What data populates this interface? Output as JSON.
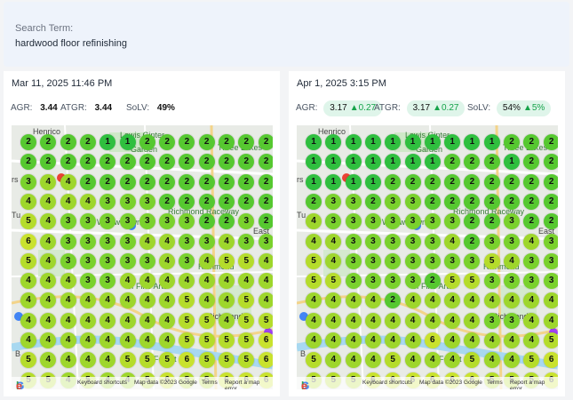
{
  "search": {
    "label": "Search Term:",
    "term": "hardwood floor refinishing"
  },
  "map_labels": {
    "henrico": "Henrico",
    "lewis_ginter": "Lewis Ginter",
    "garden": "Garden",
    "three_lakes": "Three Lakes",
    "willow_lawn": "Willow Lawn",
    "raceway": "Richmond Raceway",
    "east": "East",
    "richmond": "Richmond",
    "of_fine_arts": "of Fine Arts",
    "richmond_big": "Richmond",
    "forest": "Forest",
    "tu": "Tu",
    "rs": "rs",
    "b": "B"
  },
  "attribution": {
    "google": [
      "G",
      "o",
      "o",
      "g",
      "l",
      "e"
    ],
    "shortcuts": "Keyboard shortcuts",
    "map_data": "Map data ©2023 Google",
    "terms": "Terms",
    "report": "Report a map error"
  },
  "colors": {
    "rank_1": "#2fbf3f",
    "rank_2": "#56c830",
    "rank_3": "#7ad12d",
    "rank_4": "#9ed62c",
    "rank_5": "#b5dc2b",
    "rank_6": "#c9e22e"
  },
  "panels": [
    {
      "date": "Mar 11, 2025 11:46 PM",
      "agr_label": "AGR:",
      "agr_value": "3.44",
      "agr_delta": "",
      "atgr_label": "ATGR:",
      "atgr_value": "3.44",
      "atgr_delta": "",
      "solv_label": "SoLV:",
      "solv_value": "49%",
      "solv_delta": "",
      "grid": [
        [
          2,
          2,
          2,
          2,
          1,
          1,
          2,
          2,
          2,
          2,
          2,
          2,
          2
        ],
        [
          2,
          2,
          2,
          2,
          2,
          2,
          2,
          2,
          2,
          2,
          2,
          2,
          2
        ],
        [
          3,
          4,
          4,
          2,
          2,
          2,
          2,
          2,
          2,
          2,
          2,
          2,
          2
        ],
        [
          4,
          4,
          4,
          4,
          3,
          3,
          3,
          2,
          2,
          2,
          2,
          2,
          2
        ],
        [
          5,
          4,
          3,
          3,
          3,
          3,
          3,
          3,
          3,
          2,
          2,
          3,
          2
        ],
        [
          6,
          4,
          3,
          3,
          3,
          3,
          4,
          4,
          3,
          3,
          4,
          3,
          3
        ],
        [
          5,
          4,
          3,
          3,
          3,
          3,
          3,
          4,
          3,
          4,
          5,
          5,
          4
        ],
        [
          4,
          4,
          4,
          3,
          3,
          4,
          4,
          4,
          4,
          4,
          4,
          4,
          4
        ],
        [
          4,
          4,
          4,
          4,
          4,
          4,
          4,
          4,
          5,
          4,
          4,
          5,
          4
        ],
        [
          4,
          4,
          4,
          4,
          4,
          4,
          4,
          4,
          5,
          5,
          4,
          5,
          5
        ],
        [
          4,
          4,
          4,
          4,
          4,
          4,
          4,
          4,
          5,
          5,
          5,
          5,
          6
        ],
        [
          5,
          4,
          4,
          4,
          4,
          5,
          5,
          5,
          6,
          5,
          5,
          5,
          6
        ],
        [
          5,
          5,
          4,
          5,
          4,
          4,
          5,
          6,
          5,
          5,
          6,
          6,
          6
        ]
      ]
    },
    {
      "date": "Apr 1, 2025 3:15 PM",
      "agr_label": "AGR:",
      "agr_value": "3.17",
      "agr_delta": "▲0.27",
      "atgr_label": "ATGR:",
      "atgr_value": "3.17",
      "atgr_delta": "▲0.27",
      "solv_label": "SoLV:",
      "solv_value": "54%",
      "solv_delta": "▲5%",
      "grid": [
        [
          1,
          1,
          1,
          1,
          1,
          1,
          1,
          1,
          1,
          1,
          2,
          2,
          2
        ],
        [
          1,
          1,
          1,
          1,
          1,
          1,
          1,
          2,
          2,
          2,
          1,
          2,
          2
        ],
        [
          1,
          1,
          1,
          1,
          2,
          2,
          2,
          2,
          2,
          2,
          2,
          2,
          2
        ],
        [
          2,
          3,
          3,
          2,
          3,
          3,
          2,
          2,
          2,
          2,
          2,
          2,
          2
        ],
        [
          4,
          3,
          3,
          3,
          3,
          3,
          3,
          3,
          2,
          2,
          3,
          2,
          2
        ],
        [
          4,
          4,
          3,
          3,
          3,
          3,
          3,
          4,
          2,
          3,
          3,
          4,
          3
        ],
        [
          5,
          4,
          3,
          3,
          3,
          3,
          3,
          3,
          3,
          5,
          4,
          3,
          3
        ],
        [
          5,
          5,
          3,
          3,
          3,
          3,
          2,
          5,
          5,
          3,
          3,
          3,
          3
        ],
        [
          4,
          4,
          4,
          4,
          2,
          4,
          4,
          4,
          4,
          4,
          4,
          4,
          4
        ],
        [
          4,
          4,
          4,
          4,
          4,
          4,
          4,
          4,
          4,
          3,
          3,
          4,
          4
        ],
        [
          4,
          4,
          4,
          4,
          4,
          4,
          6,
          4,
          4,
          4,
          4,
          4,
          5
        ],
        [
          5,
          4,
          4,
          4,
          5,
          4,
          4,
          4,
          5,
          4,
          4,
          5,
          6
        ],
        [
          5,
          5,
          5,
          6,
          6,
          6,
          6,
          6,
          6,
          5,
          5,
          5,
          6
        ]
      ]
    }
  ]
}
